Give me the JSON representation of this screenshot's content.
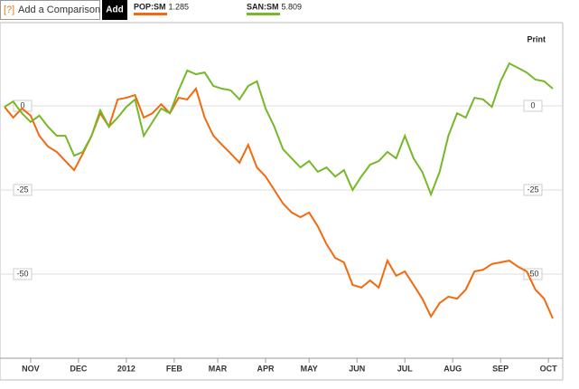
{
  "toolbar": {
    "help": "[?]",
    "input_placeholder": "Add a Comparison",
    "button": "Add",
    "print": "Print"
  },
  "chart_data": {
    "type": "line",
    "series": [
      {
        "name": "POP:SM",
        "last": 1.285,
        "color": "#f26a10",
        "values": [
          -0.3,
          -3.5,
          -0.8,
          -2.9,
          -8.9,
          -12.1,
          -13.7,
          -16.4,
          -19.1,
          -14.2,
          -8.9,
          -2.2,
          -6.2,
          1.9,
          2.4,
          3.2,
          -3.5,
          -2.2,
          0.5,
          -2.2,
          2.4,
          1.9,
          5.1,
          -3.5,
          -8.9,
          -11.6,
          -14.2,
          -16.9,
          -11.6,
          -18.3,
          -21.0,
          -25.0,
          -29.0,
          -31.7,
          -33.1,
          -31.7,
          -35.8,
          -41.1,
          -45.2,
          -46.5,
          -53.2,
          -54.0,
          -51.9,
          -54.0,
          -46.0,
          -50.5,
          -49.2,
          -53.2,
          -57.3,
          -62.6,
          -58.6,
          -56.7,
          -57.3,
          -54.6,
          -49.2,
          -48.7,
          -47.0,
          -46.5,
          -46.0,
          -47.8,
          -49.2,
          -54.6,
          -57.3,
          -63.2
        ]
      },
      {
        "name": "SAN:SM",
        "last": 5.809,
        "color": "#77b82a",
        "values": [
          -0.3,
          1.3,
          -2.2,
          -4.8,
          -2.9,
          -6.2,
          -8.9,
          -8.9,
          -14.8,
          -13.7,
          -8.9,
          -1.3,
          -6.2,
          -3.5,
          -0.3,
          1.9,
          -8.9,
          -4.8,
          -0.8,
          -2.2,
          4.6,
          10.5,
          9.4,
          9.9,
          5.9,
          5.1,
          4.6,
          1.9,
          5.9,
          7.3,
          -0.8,
          -6.2,
          -12.9,
          -15.6,
          -18.3,
          -16.4,
          -19.6,
          -18.3,
          -21.0,
          -19.1,
          -25.0,
          -21.0,
          -17.5,
          -16.4,
          -13.7,
          -15.6,
          -8.9,
          -15.6,
          -19.6,
          -26.3,
          -19.6,
          -8.9,
          -2.2,
          -3.5,
          2.4,
          1.9,
          -0.3,
          7.3,
          12.6,
          11.3,
          9.9,
          7.8,
          7.3,
          5.1
        ]
      }
    ],
    "ylim": [
      -75,
      25
    ],
    "yticks": [
      -50,
      -25,
      0
    ],
    "xlim": [
      0,
      63
    ],
    "xticks": [
      {
        "value": 3,
        "label": "NOV"
      },
      {
        "value": 8.5,
        "label": "DEC"
      },
      {
        "value": 14,
        "label": "2012"
      },
      {
        "value": 19.5,
        "label": "FEB"
      },
      {
        "value": 24.5,
        "label": "MAR"
      },
      {
        "value": 30,
        "label": "APR"
      },
      {
        "value": 35,
        "label": "MAY"
      },
      {
        "value": 40.5,
        "label": "JUN"
      },
      {
        "value": 46,
        "label": "JUL"
      },
      {
        "value": 51.5,
        "label": "AUG"
      },
      {
        "value": 57,
        "label": "SEP"
      },
      {
        "value": 62.5,
        "label": "OCT"
      }
    ],
    "grid": true
  }
}
